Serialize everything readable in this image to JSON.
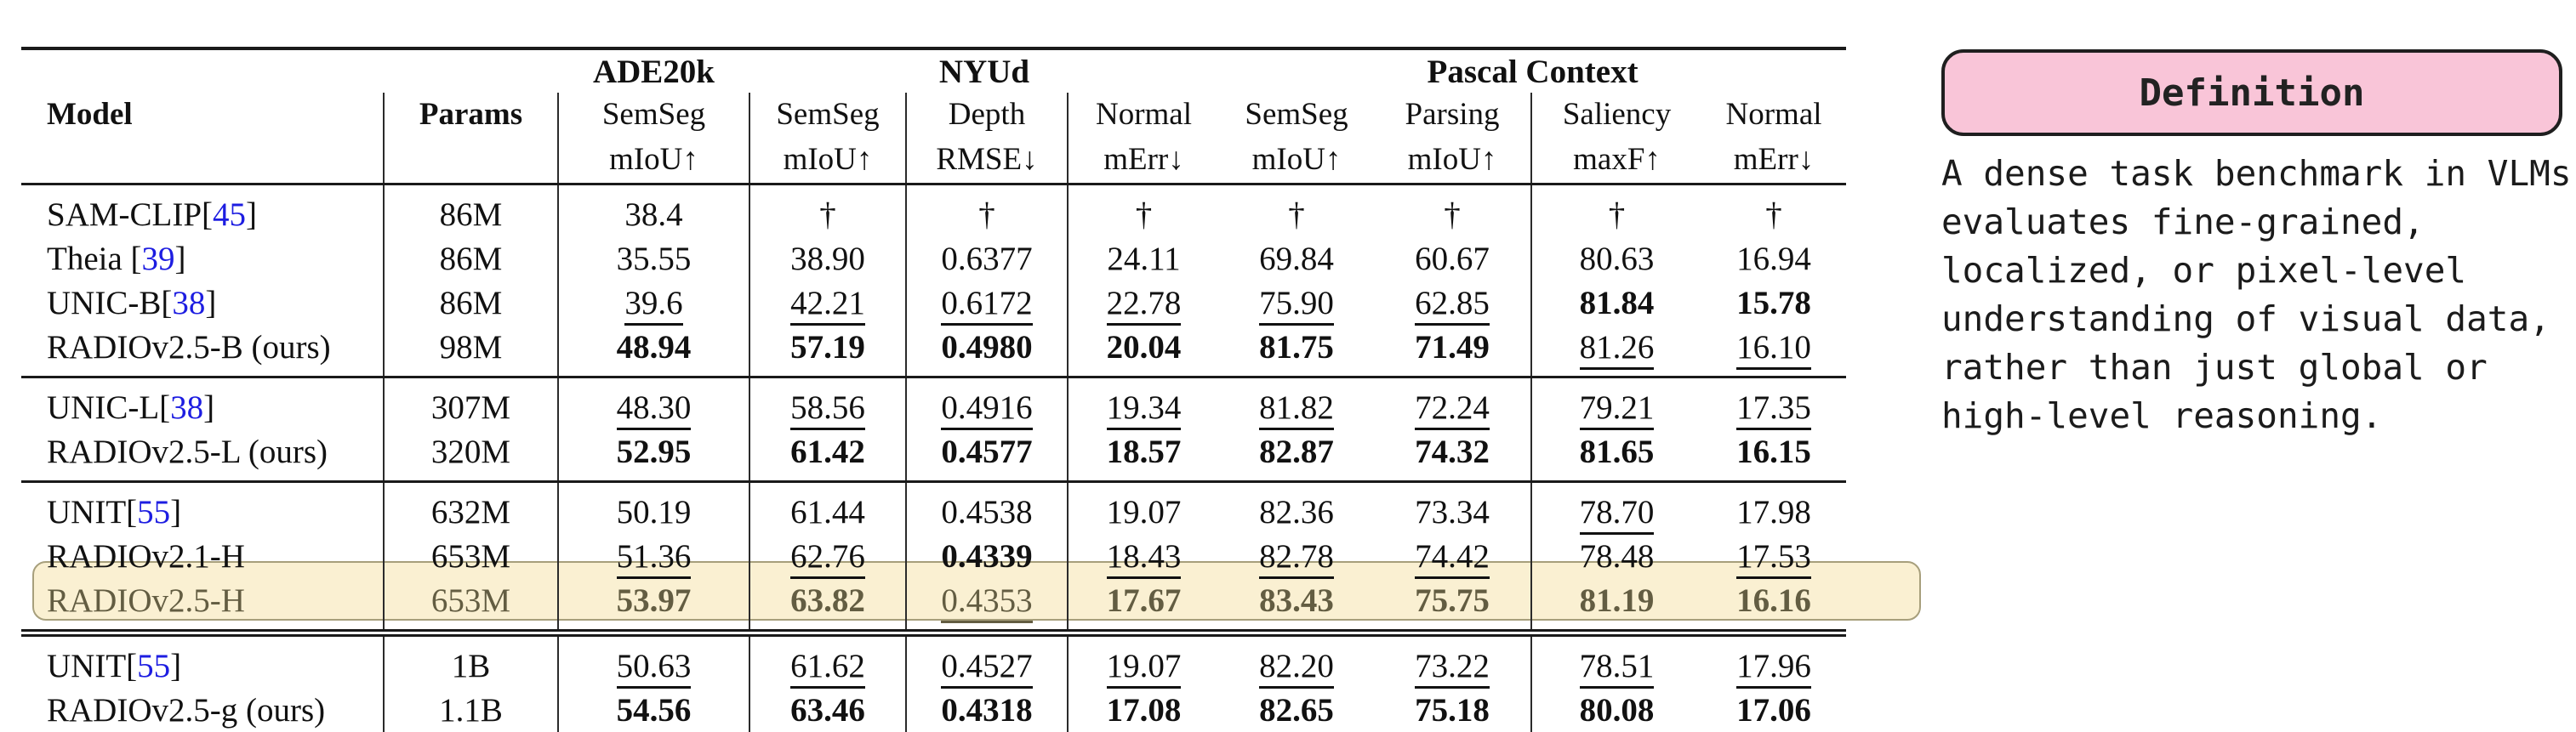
{
  "colors": {
    "accent_pink": "#f9c5d8",
    "highlight_bg": "#faf0d2",
    "highlight_border": "#a79f7c",
    "highlight_text": "#635d42",
    "citation_blue": "#1d1de1",
    "rule_color": "#1a1a1a"
  },
  "table": {
    "model_header": "Model",
    "params_header": "Params",
    "groups": [
      {
        "label": "ADE20k",
        "span": 1
      },
      {
        "label": "NYUd",
        "span": 3
      },
      {
        "label": "Pascal Context",
        "span": 4
      }
    ],
    "columns": [
      {
        "name": "SemSeg",
        "metric": "mIoU↑"
      },
      {
        "name": "SemSeg",
        "metric": "mIoU↑"
      },
      {
        "name": "Depth",
        "metric": "RMSE↓"
      },
      {
        "name": "Normal",
        "metric": "mErr↓"
      },
      {
        "name": "SemSeg",
        "metric": "mIoU↑"
      },
      {
        "name": "Parsing",
        "metric": "mIoU↑"
      },
      {
        "name": "Saliency",
        "metric": "maxF↑"
      },
      {
        "name": "Normal",
        "metric": "mErr↓"
      }
    ],
    "rows": [
      {
        "model": "SAM-CLIP",
        "cite": "45",
        "params": "86M",
        "sec_start": true,
        "values": [
          [
            "38.4",
            "p"
          ],
          [
            "†",
            "p"
          ],
          [
            "†",
            "p"
          ],
          [
            "†",
            "p"
          ],
          [
            "†",
            "p"
          ],
          [
            "†",
            "p"
          ],
          [
            "†",
            "p"
          ],
          [
            "†",
            "p"
          ]
        ]
      },
      {
        "model": "Theia ",
        "cite": "39",
        "params": "86M",
        "values": [
          [
            "35.55",
            "p"
          ],
          [
            "38.90",
            "p"
          ],
          [
            "0.6377",
            "p"
          ],
          [
            "24.11",
            "p"
          ],
          [
            "69.84",
            "p"
          ],
          [
            "60.67",
            "p"
          ],
          [
            "80.63",
            "p"
          ],
          [
            "16.94",
            "p"
          ]
        ]
      },
      {
        "model": "UNIC-B",
        "cite": "38",
        "params": "86M",
        "values": [
          [
            "39.6",
            "u"
          ],
          [
            "42.21",
            "u"
          ],
          [
            "0.6172",
            "u"
          ],
          [
            "22.78",
            "u"
          ],
          [
            "75.90",
            "u"
          ],
          [
            "62.85",
            "u"
          ],
          [
            "81.84",
            "b"
          ],
          [
            "15.78",
            "b"
          ]
        ]
      },
      {
        "model": "RADIOv2.5-B (ours)",
        "cite": null,
        "params": "98M",
        "sec_end": true,
        "rule": "single",
        "values": [
          [
            "48.94",
            "b"
          ],
          [
            "57.19",
            "b"
          ],
          [
            "0.4980",
            "b"
          ],
          [
            "20.04",
            "b"
          ],
          [
            "81.75",
            "b"
          ],
          [
            "71.49",
            "b"
          ],
          [
            "81.26",
            "u"
          ],
          [
            "16.10",
            "u"
          ]
        ]
      },
      {
        "model": "UNIC-L",
        "cite": "38",
        "params": "307M",
        "sec_start": true,
        "values": [
          [
            "48.30",
            "u"
          ],
          [
            "58.56",
            "u"
          ],
          [
            "0.4916",
            "u"
          ],
          [
            "19.34",
            "u"
          ],
          [
            "81.82",
            "u"
          ],
          [
            "72.24",
            "u"
          ],
          [
            "79.21",
            "u"
          ],
          [
            "17.35",
            "u"
          ]
        ]
      },
      {
        "model": "RADIOv2.5-L (ours)",
        "cite": null,
        "params": "320M",
        "sec_end": true,
        "rule": "single",
        "values": [
          [
            "52.95",
            "b"
          ],
          [
            "61.42",
            "b"
          ],
          [
            "0.4577",
            "b"
          ],
          [
            "18.57",
            "b"
          ],
          [
            "82.87",
            "b"
          ],
          [
            "74.32",
            "b"
          ],
          [
            "81.65",
            "b"
          ],
          [
            "16.15",
            "b"
          ]
        ]
      },
      {
        "model": "UNIT",
        "cite": "55",
        "params": "632M",
        "sec_start": true,
        "values": [
          [
            "50.19",
            "p"
          ],
          [
            "61.44",
            "p"
          ],
          [
            "0.4538",
            "p"
          ],
          [
            "19.07",
            "p"
          ],
          [
            "82.36",
            "p"
          ],
          [
            "73.34",
            "p"
          ],
          [
            "78.70",
            "u"
          ],
          [
            "17.98",
            "p"
          ]
        ]
      },
      {
        "model": "RADIOv2.1-H",
        "cite": null,
        "params": "653M",
        "values": [
          [
            "51.36",
            "u"
          ],
          [
            "62.76",
            "u"
          ],
          [
            "0.4339",
            "b"
          ],
          [
            "18.43",
            "u"
          ],
          [
            "82.78",
            "u"
          ],
          [
            "74.42",
            "u"
          ],
          [
            "78.48",
            "p"
          ],
          [
            "17.53",
            "u"
          ]
        ]
      },
      {
        "model": "RADIOv2.5-H",
        "cite": null,
        "params": "653M",
        "highlight": true,
        "sec_end": true,
        "rule": "double",
        "values": [
          [
            "53.97",
            "b"
          ],
          [
            "63.82",
            "b"
          ],
          [
            "0.4353",
            "u"
          ],
          [
            "17.67",
            "b"
          ],
          [
            "83.43",
            "b"
          ],
          [
            "75.75",
            "b"
          ],
          [
            "81.19",
            "b"
          ],
          [
            "16.16",
            "b"
          ]
        ]
      },
      {
        "model": "UNIT",
        "cite": "55",
        "params": "1B",
        "sec_start": true,
        "values": [
          [
            "50.63",
            "u"
          ],
          [
            "61.62",
            "u"
          ],
          [
            "0.4527",
            "u"
          ],
          [
            "19.07",
            "u"
          ],
          [
            "82.20",
            "u"
          ],
          [
            "73.22",
            "u"
          ],
          [
            "78.51",
            "u"
          ],
          [
            "17.96",
            "u"
          ]
        ]
      },
      {
        "model": "RADIOv2.5-g (ours)",
        "cite": null,
        "params": "1.1B",
        "values": [
          [
            "54.56",
            "b"
          ],
          [
            "63.46",
            "b"
          ],
          [
            "0.4318",
            "b"
          ],
          [
            "17.08",
            "b"
          ],
          [
            "82.65",
            "b"
          ],
          [
            "75.18",
            "b"
          ],
          [
            "80.08",
            "b"
          ],
          [
            "17.06",
            "b"
          ]
        ]
      }
    ]
  },
  "definition": {
    "title": "Definition",
    "lines": [
      "A dense task benchmark in VLMs",
      "evaluates fine-grained,",
      "localized, or pixel-level",
      "understanding of visual data,",
      "rather than just global or",
      "high-level reasoning."
    ]
  }
}
